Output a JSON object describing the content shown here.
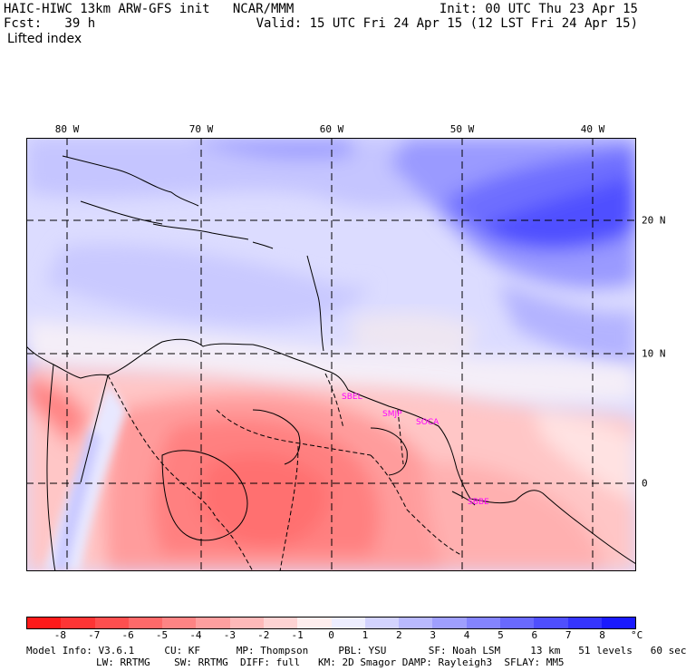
{
  "header": {
    "title": "HAIC-HIWC 13km ARW-GFS init   NCAR/MMM",
    "forecast": "Fcst:   39 h",
    "init": "Init: 00 UTC Thu 23 Apr 15",
    "valid": "Valid: 15 UTC Fri 24 Apr 15 (12 LST Fri 24 Apr 15)",
    "field": "Lifted index"
  },
  "axes": {
    "lon_labels": [
      "80 W",
      "70 W",
      "60 W",
      "50 W",
      "40 W"
    ],
    "lat_labels": [
      "20 N",
      "10 N",
      "0"
    ]
  },
  "cities": [
    "SBEL",
    "SMJP",
    "SOCA",
    "SBBE"
  ],
  "colorbar": {
    "labels": [
      "-8",
      "-7",
      "-6",
      "-5",
      "-4",
      "-3",
      "-2",
      "-1",
      "0",
      "1",
      "2",
      "3",
      "4",
      "5",
      "6",
      "7",
      "8"
    ],
    "unit": "°C",
    "colors": [
      "#ff1a1a",
      "#ff3535",
      "#ff4f4f",
      "#ff6969",
      "#ff8484",
      "#ff9f9f",
      "#ffb9b9",
      "#ffd3d3",
      "#ffeeee",
      "#eeeeff",
      "#d3d3ff",
      "#b9b9ff",
      "#9f9fff",
      "#8484ff",
      "#6969ff",
      "#4f4fff",
      "#3535ff",
      "#1a1aff"
    ]
  },
  "footer": {
    "line1": "Model Info: V3.6.1     CU: KF      MP: Thompson     PBL: YSU       SF: Noah LSM     13 km   51 levels   60 sec",
    "line2": "LW: RRTMG    SW: RRTMG  DIFF: full   KM: 2D Smagor DAMP: Rayleigh3  SFLAY: MM5"
  }
}
